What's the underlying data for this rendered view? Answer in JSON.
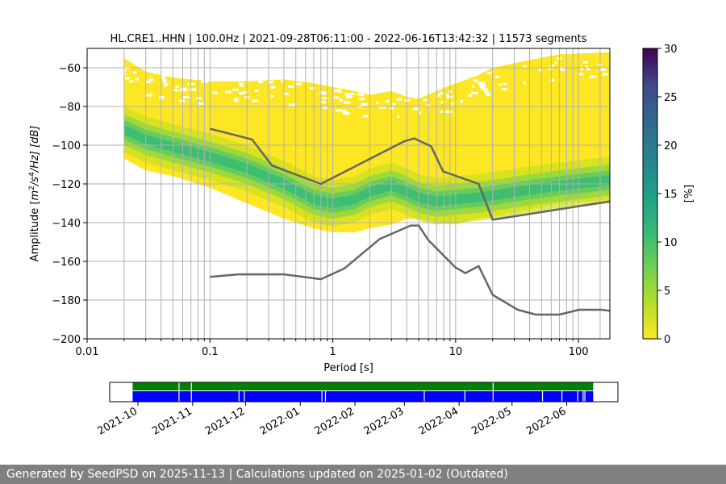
{
  "chart_data": [
    {
      "type": "heatmap",
      "title": "HL.CRE1..HHN | 100.0Hz | 2021-09-28T06:11:00 - 2022-06-16T13:42:32 | 11573 segments",
      "xlabel": "Period [s]",
      "ylabel": "Amplitude [m²/s⁴/Hz] [dB]",
      "ylabel_parts": {
        "pre": "Amplitude [",
        "m": "m",
        "two": "2",
        "mid": "/s",
        "four": "4",
        "post": "/Hz] [dB]"
      },
      "xscale": "log",
      "xlim": [
        0.01,
        180
      ],
      "ylim": [
        -200,
        -50
      ],
      "x_ticks": [
        "0.01",
        "0.1",
        "1",
        "10",
        "100"
      ],
      "y_ticks": [
        "-60",
        "-80",
        "-100",
        "-120",
        "-140",
        "-160",
        "-180",
        "-200"
      ],
      "grid": true,
      "colorbar": {
        "label": "[%]",
        "ticks": [
          "0",
          "5",
          "10",
          "15",
          "20",
          "25",
          "30"
        ],
        "min": 0,
        "max": 30,
        "colormap": "viridis"
      },
      "density_ridge": {
        "x": [
          0.02,
          0.03,
          0.05,
          0.1,
          0.2,
          0.4,
          0.7,
          1,
          1.5,
          2,
          3,
          4,
          5,
          7,
          10,
          15,
          20,
          40,
          70,
          180
        ],
        "y": [
          -92,
          -97,
          -101,
          -106,
          -112,
          -120,
          -128,
          -130,
          -128,
          -124,
          -121,
          -124,
          -127,
          -129,
          -128,
          -127,
          -126,
          -123,
          -121,
          -118
        ],
        "upper": [
          -55,
          -62,
          -65,
          -67,
          -67,
          -66,
          -68,
          -70,
          -72,
          -74,
          -72,
          -75,
          -76,
          -72,
          -68,
          -64,
          -60,
          -56,
          -53,
          -52
        ],
        "lower": [
          -107,
          -113,
          -116,
          -122,
          -130,
          -138,
          -143,
          -145,
          -145,
          -143,
          -141,
          -138,
          -138,
          -140,
          -141,
          -138,
          -137,
          -133,
          -130,
          -128
        ]
      },
      "series": [
        {
          "name": "",
          "color": "#666666",
          "x": [
            0.1,
            0.22,
            0.32,
            0.8,
            3.8,
            4.6,
            6.3,
            7.9,
            15.4,
            20,
            180
          ],
          "y": [
            -91.5,
            -97,
            -110.5,
            -120,
            -98,
            -96.5,
            -100.5,
            -113.5,
            -120,
            -138.5,
            -129
          ]
        },
        {
          "name": "",
          "color": "#666666",
          "x": [
            0.1,
            0.17,
            0.4,
            0.8,
            1.24,
            2.4,
            4.3,
            5.0,
            6.0,
            10,
            12,
            15.4,
            20,
            32,
            45,
            70,
            101,
            154,
            180
          ],
          "y": [
            -168,
            -166.7,
            -166.7,
            -169.2,
            -163.7,
            -148.5,
            -141.5,
            -141.5,
            -149.1,
            -163.2,
            -166.1,
            -162.4,
            -177.3,
            -185,
            -187.5,
            -187.5,
            -185,
            -185,
            -185.5
          ]
        }
      ]
    },
    {
      "type": "bar",
      "title": "",
      "x_ticks": [
        "2021-10",
        "2021-11",
        "2021-12",
        "2022-01",
        "2022-02",
        "2022-03",
        "2022-04",
        "2022-05",
        "2022-06"
      ],
      "x_tick_dates": [
        "2021-10-01",
        "2021-11-01",
        "2021-12-01",
        "2022-01-01",
        "2022-02-01",
        "2022-03-01",
        "2022-04-01",
        "2022-05-01",
        "2022-06-01"
      ],
      "xlim": [
        "2021-09-15",
        "2022-06-30"
      ],
      "data_range": [
        "2021-09-28",
        "2022-06-16"
      ],
      "rows": [
        {
          "name": "",
          "color": "#008000",
          "gaps": [
            "2021-10-24",
            "2021-10-31",
            "2022-04-20"
          ]
        },
        {
          "name": "",
          "color": "#0000ff",
          "gaps": [
            "2021-10-24",
            "2021-10-31",
            "2021-11-27",
            "2021-11-30",
            "2022-01-13",
            "2022-01-15",
            "2022-03-12",
            "2022-04-04",
            "2022-04-20",
            "2022-05-18",
            "2022-05-29",
            "2022-06-07",
            "2022-06-10",
            "2022-06-11"
          ]
        }
      ]
    }
  ],
  "footer": "Generated by SeedPSD on 2025-11-13 | Calculations updated on 2025-01-02 (Outdated)",
  "colors": {
    "footer_bg": "#808080",
    "grid": "#b0b0b0",
    "line": "#666666"
  }
}
